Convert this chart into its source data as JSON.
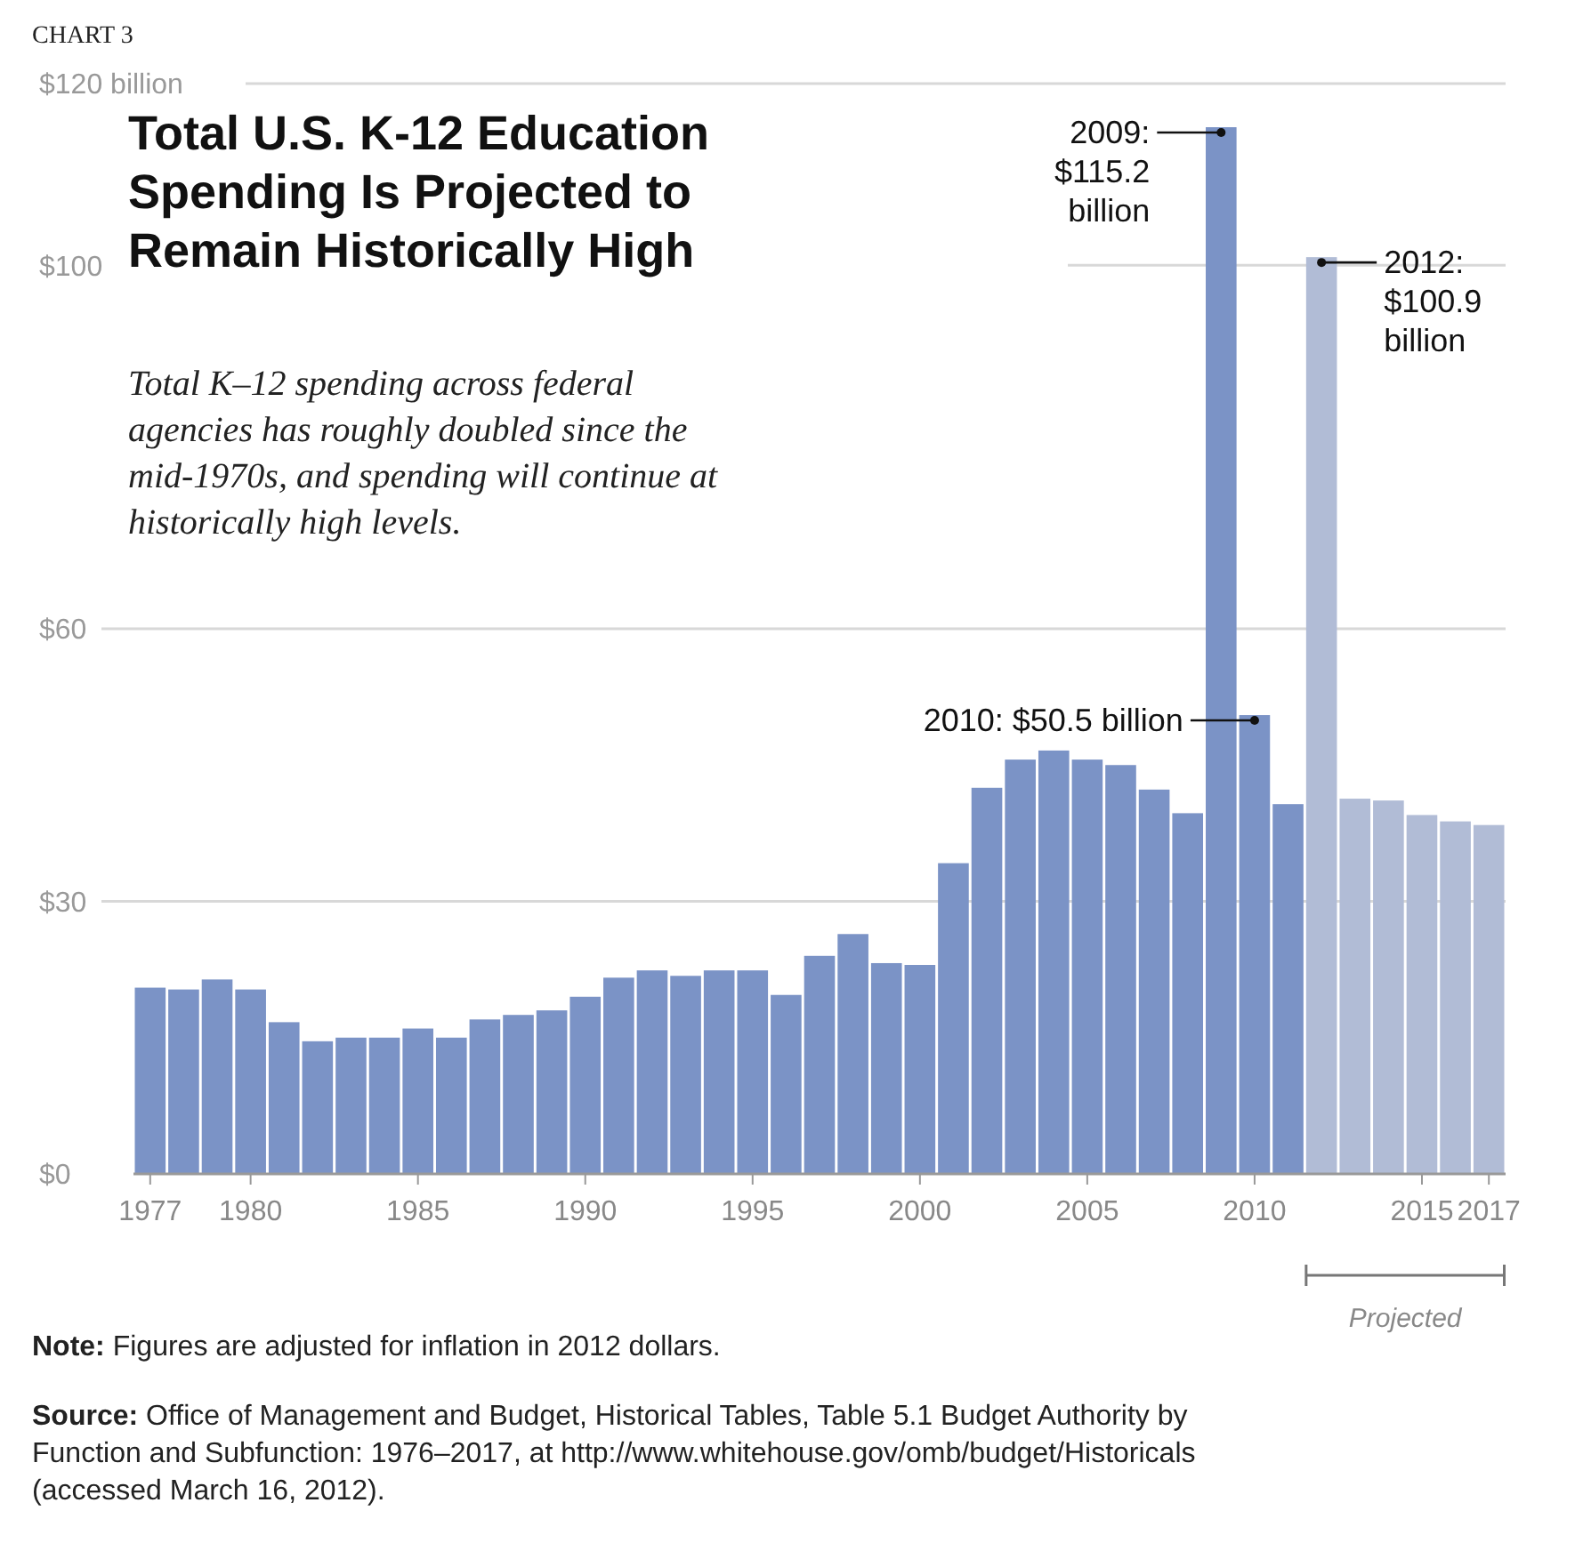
{
  "chart_data": {
    "type": "bar",
    "title": "Total U.S. K-12 Education Spending Is Projected to Remain Historically High",
    "subtitle": "Total K–12 spending across federal agencies has roughly doubled since the mid-1970s, and spending will continue at historically high levels.",
    "series": [
      {
        "color": "#7b93c6",
        "x": [
          1977,
          1978,
          1979,
          1980,
          1981,
          1982,
          1983,
          1984,
          1985,
          1986,
          1987,
          1988,
          1989,
          1990,
          1991,
          1992,
          1993,
          1994,
          1995,
          1996,
          1997,
          1998,
          1999,
          2000,
          2001,
          2002,
          2003,
          2004,
          2005,
          2006,
          2007,
          2008,
          2009,
          2010,
          2011
        ],
        "values": [
          20.5,
          20.3,
          21.4,
          20.3,
          16.7,
          14.6,
          15,
          15,
          16,
          15,
          17,
          17.5,
          18,
          19.5,
          21.6,
          22.4,
          21.8,
          22.4,
          22.4,
          19.7,
          24,
          26.4,
          23.2,
          23,
          34.2,
          42.5,
          45.6,
          46.6,
          45.6,
          45,
          42.3,
          39.7,
          115.2,
          50.5,
          40.7
        ]
      },
      {
        "color": "#b1bcd6",
        "x": [
          2012,
          2013,
          2014,
          2015,
          2016,
          2017
        ],
        "values": [
          100.9,
          41.3,
          41.1,
          39.5,
          38.8,
          38.4
        ]
      }
    ],
    "xlim": [
      1976.5,
      2017.5
    ],
    "xticks": [
      1977,
      1980,
      1985,
      1990,
      1995,
      2000,
      2005,
      2010,
      2015,
      2017
    ],
    "ylim": [
      0,
      120
    ],
    "yticks": [
      {
        "value": 0,
        "label": "$0"
      },
      {
        "value": 30,
        "label": "$30"
      },
      {
        "value": 60,
        "label": "$60"
      },
      {
        "value": 100,
        "label": "$100"
      },
      {
        "value": 120,
        "label": "$120 billion"
      }
    ],
    "grid": "y",
    "annotations": [
      "CHART 3",
      {
        "text": "2009:\n$115.2\nbillion",
        "x": 2009,
        "y": 115.2
      },
      {
        "text": "2012:\n$100.9\nbillion",
        "x": 2012,
        "y": 100.9
      },
      {
        "text": "2010: $50.5 billion",
        "x": 2010,
        "y": 50.5
      },
      "Projected",
      "Note: Figures are adjusted for inflation in 2012 dollars.",
      "Source: Office of Management and Budget, Historical Tables, Table 5.1 Budget Authority by Function and Subfunction: 1976–2017, at http://www.whitehouse.gov/omb/budget/Historicals (accessed March 16, 2012)."
    ]
  }
}
